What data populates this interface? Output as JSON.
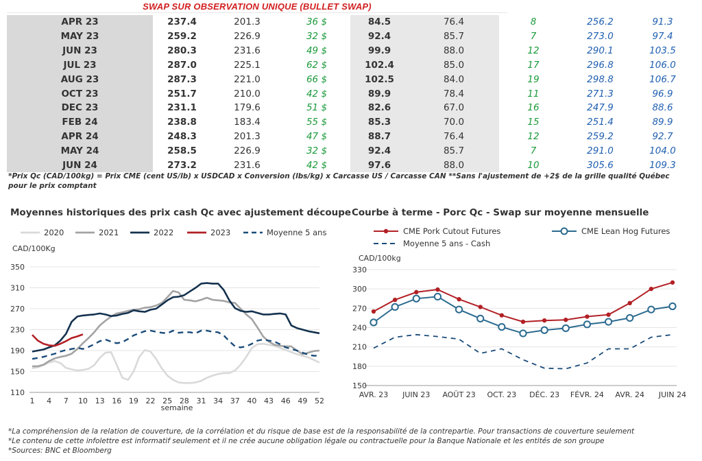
{
  "table": {
    "title": "SWAP SUR OBSERVATION UNIQUE (BULLET SWAP)",
    "rows": [
      {
        "month": "APR 23",
        "cme_cutout": "237.4",
        "usd_cutout": "201.3",
        "diff_cutout": "36 $",
        "cme_hog": "84.5",
        "usd_hog": "76.4",
        "diff_hog": "8",
        "qc_price": "256.2",
        "qc_lb": "91.3"
      },
      {
        "month": "MAY 23",
        "cme_cutout": "259.2",
        "usd_cutout": "226.9",
        "diff_cutout": "32 $",
        "cme_hog": "92.4",
        "usd_hog": "85.7",
        "diff_hog": "7",
        "qc_price": "273.0",
        "qc_lb": "97.4"
      },
      {
        "month": "JUN 23",
        "cme_cutout": "280.3",
        "usd_cutout": "231.6",
        "diff_cutout": "49 $",
        "cme_hog": "99.9",
        "usd_hog": "88.0",
        "diff_hog": "12",
        "qc_price": "290.1",
        "qc_lb": "103.5"
      },
      {
        "month": "JUL 23",
        "cme_cutout": "287.0",
        "usd_cutout": "225.1",
        "diff_cutout": "62 $",
        "cme_hog": "102.4",
        "usd_hog": "85.0",
        "diff_hog": "17",
        "qc_price": "296.8",
        "qc_lb": "106.0"
      },
      {
        "month": "AUG 23",
        "cme_cutout": "287.3",
        "usd_cutout": "221.0",
        "diff_cutout": "66 $",
        "cme_hog": "102.5",
        "usd_hog": "84.0",
        "diff_hog": "19",
        "qc_price": "298.8",
        "qc_lb": "106.7"
      },
      {
        "month": "OCT 23",
        "cme_cutout": "251.7",
        "usd_cutout": "210.0",
        "diff_cutout": "42 $",
        "cme_hog": "89.9",
        "usd_hog": "78.4",
        "diff_hog": "11",
        "qc_price": "271.3",
        "qc_lb": "96.9"
      },
      {
        "month": "DEC 23",
        "cme_cutout": "231.1",
        "usd_cutout": "179.6",
        "diff_cutout": "51 $",
        "cme_hog": "82.6",
        "usd_hog": "67.0",
        "diff_hog": "16",
        "qc_price": "247.9",
        "qc_lb": "88.6"
      },
      {
        "month": "FEB 24",
        "cme_cutout": "238.8",
        "usd_cutout": "183.4",
        "diff_cutout": "55 $",
        "cme_hog": "85.3",
        "usd_hog": "70.0",
        "diff_hog": "15",
        "qc_price": "251.4",
        "qc_lb": "89.9"
      },
      {
        "month": "APR 24",
        "cme_cutout": "248.3",
        "usd_cutout": "201.3",
        "diff_cutout": "47 $",
        "cme_hog": "88.7",
        "usd_hog": "76.4",
        "diff_hog": "12",
        "qc_price": "259.2",
        "qc_lb": "92.7"
      },
      {
        "month": "MAY 24",
        "cme_cutout": "258.5",
        "usd_cutout": "226.9",
        "diff_cutout": "32 $",
        "cme_hog": "92.4",
        "usd_hog": "85.7",
        "diff_hog": "7",
        "qc_price": "291.0",
        "qc_lb": "104.0"
      },
      {
        "month": "JUN 24",
        "cme_cutout": "273.2",
        "usd_cutout": "231.6",
        "diff_cutout": "42 $",
        "cme_hog": "97.6",
        "usd_hog": "88.0",
        "diff_hog": "10",
        "qc_price": "305.6",
        "qc_lb": "109.3"
      }
    ]
  },
  "footnote": "*Prix Qc (CAD/100kg) = Prix CME (cent US/lb) x USDCAD x Conversion (lbs/kg) x Carcasse US / Carcasse CAN **Sans l'ajustement de +2$ de la grille qualité Québec pour le prix comptant",
  "chart_data": [
    {
      "type": "line",
      "title": "Moyennes historiques des prix cash Qc avec ajustement découpe",
      "ylabel": "CAD/100Kg",
      "xlabel": "semaine",
      "ylim": [
        110,
        350
      ],
      "xlim": [
        1,
        52
      ],
      "yticks": [
        "110",
        "150",
        "190",
        "230",
        "270",
        "310",
        "350"
      ],
      "xticks": [
        "1",
        "4",
        "7",
        "10",
        "13",
        "16",
        "19",
        "22",
        "25",
        "28",
        "31",
        "34",
        "37",
        "40",
        "43",
        "46",
        "49",
        "52"
      ],
      "legend_position": "top",
      "series": [
        {
          "name": "2020",
          "color": "#d9d9d9",
          "style": "solid",
          "x": [
            1,
            2,
            3,
            4,
            5,
            6,
            7,
            8,
            9,
            10,
            11,
            12,
            13,
            14,
            15,
            16,
            17,
            18,
            19,
            20,
            21,
            22,
            23,
            24,
            25,
            26,
            27,
            28,
            29,
            30,
            31,
            32,
            33,
            34,
            35,
            36,
            37,
            38,
            39,
            40,
            41,
            42,
            43,
            44,
            45,
            46,
            47,
            48,
            49,
            50,
            51,
            52
          ],
          "y": [
            156,
            158,
            162,
            167,
            170,
            166,
            157,
            154,
            152,
            153,
            155,
            162,
            176,
            186,
            187,
            163,
            138,
            134,
            150,
            178,
            191,
            188,
            174,
            156,
            142,
            134,
            129,
            128,
            128,
            129,
            132,
            138,
            142,
            145,
            147,
            147,
            152,
            163,
            178,
            195,
            202,
            203,
            201,
            199,
            195,
            191,
            187,
            183,
            180,
            177,
            172,
            167
          ]
        },
        {
          "name": "2021",
          "color": "#a3a3a3",
          "style": "solid",
          "x": [
            1,
            2,
            3,
            4,
            5,
            6,
            7,
            8,
            9,
            10,
            11,
            12,
            13,
            14,
            15,
            16,
            17,
            18,
            19,
            20,
            21,
            22,
            23,
            24,
            25,
            26,
            27,
            28,
            29,
            30,
            31,
            32,
            33,
            34,
            35,
            36,
            37,
            38,
            39,
            40,
            41,
            42,
            43,
            44,
            45,
            46,
            47,
            48,
            49,
            50,
            51,
            52
          ],
          "y": [
            160,
            160,
            163,
            170,
            175,
            178,
            180,
            184,
            193,
            204,
            214,
            225,
            238,
            247,
            255,
            261,
            263,
            266,
            268,
            269,
            272,
            273,
            276,
            281,
            292,
            304,
            301,
            287,
            286,
            284,
            287,
            291,
            287,
            286,
            285,
            282,
            281,
            270,
            259,
            250,
            234,
            217,
            207,
            201,
            199,
            198,
            198,
            190,
            183,
            186,
            189,
            190
          ]
        },
        {
          "name": "2022",
          "color": "#14324f",
          "style": "solid",
          "x": [
            1,
            2,
            3,
            4,
            5,
            6,
            7,
            8,
            9,
            10,
            11,
            12,
            13,
            14,
            15,
            16,
            17,
            18,
            19,
            20,
            21,
            22,
            23,
            24,
            25,
            26,
            27,
            28,
            29,
            30,
            31,
            32,
            33,
            34,
            35,
            36,
            37,
            38,
            39,
            40,
            41,
            42,
            43,
            44,
            45,
            46,
            47,
            48,
            49,
            50,
            51,
            52
          ],
          "y": [
            188,
            190,
            192,
            196,
            200,
            209,
            222,
            245,
            255,
            257,
            258,
            259,
            261,
            259,
            256,
            257,
            260,
            262,
            267,
            265,
            264,
            268,
            270,
            278,
            286,
            292,
            293,
            296,
            303,
            310,
            318,
            319,
            318,
            318,
            306,
            286,
            271,
            266,
            264,
            265,
            262,
            259,
            259,
            260,
            261,
            259,
            238,
            233,
            230,
            227,
            225,
            223
          ]
        },
        {
          "name": "2023",
          "color": "#b22025",
          "style": "solid",
          "x": [
            1,
            2,
            3,
            4,
            5,
            6,
            7,
            8,
            9,
            10
          ],
          "y": [
            220,
            209,
            203,
            200,
            199,
            203,
            208,
            214,
            217,
            221
          ]
        },
        {
          "name": "Moyenne 5 ans",
          "color": "#1a4b7a",
          "style": "dashed",
          "x": [
            1,
            2,
            3,
            4,
            5,
            6,
            7,
            8,
            9,
            10,
            11,
            12,
            13,
            14,
            15,
            16,
            17,
            18,
            19,
            20,
            21,
            22,
            23,
            24,
            25,
            26,
            27,
            28,
            29,
            30,
            31,
            32,
            33,
            34,
            35,
            36,
            37,
            38,
            39,
            40,
            41,
            42,
            43,
            44,
            45,
            46,
            47,
            48,
            49,
            50,
            51,
            52
          ],
          "y": [
            174,
            176,
            178,
            181,
            184,
            188,
            191,
            193,
            195,
            193,
            197,
            202,
            208,
            211,
            207,
            204,
            206,
            212,
            219,
            223,
            227,
            228,
            226,
            224,
            223,
            228,
            224,
            225,
            225,
            223,
            228,
            228,
            226,
            225,
            219,
            208,
            198,
            196,
            198,
            203,
            209,
            211,
            209,
            207,
            202,
            196,
            193,
            190,
            186,
            182,
            180,
            180
          ]
        }
      ]
    },
    {
      "type": "line",
      "title": "Courbe à terme - Porc Qc - Swap sur moyenne mensuelle",
      "ylabel": "CAD/100kg",
      "ylim": [
        150,
        330
      ],
      "yticks": [
        "150",
        "180",
        "210",
        "240",
        "270",
        "300",
        "330"
      ],
      "categories": [
        "AVR. 23",
        "",
        "JUIN 23",
        "",
        "AOÛT 23",
        "",
        "OCT. 23",
        "",
        "DÉC. 23",
        "",
        "FÉVR. 24",
        "",
        "AVR. 24",
        "",
        "JUIN 24"
      ],
      "xtick_labels": [
        "AVR. 23",
        "JUIN 23",
        "AOÛT 23",
        "OCT. 23",
        "DÉC. 23",
        "FÉVR. 24",
        "AVR. 24",
        "JUIN 24"
      ],
      "legend_position": "top",
      "series": [
        {
          "name": "CME Pork Cutout Futures",
          "color": "#b22025",
          "style": "solid-dot",
          "values": [
            265,
            283,
            295,
            299,
            284,
            272,
            259,
            249,
            251,
            252,
            257,
            260,
            278,
            300,
            310
          ]
        },
        {
          "name": "CME Lean Hog Futures",
          "color": "#2a6a8f",
          "style": "solid-circle",
          "values": [
            248,
            272,
            285,
            288,
            268,
            254,
            241,
            231,
            236,
            239,
            245,
            249,
            255,
            268,
            273
          ]
        },
        {
          "name": "Moyenne 5 ans - Cash",
          "color": "#1a4b7a",
          "style": "dashed",
          "values": [
            208,
            225,
            229,
            226,
            222,
            200,
            207,
            190,
            177,
            176,
            185,
            207,
            207,
            225,
            229
          ]
        }
      ]
    }
  ],
  "notes": [
    "*La compréhension de la relation de couverture, de la corrélation et du risque de base est de la responsabilité de la contrepartie. Pour transactions de couverture seulement",
    "*Le contenu de cette infolettre est informatif seulement et il ne crée aucune obligation légale ou contractuelle pour la Banque Nationale et les entités de son groupe",
    "*Sources: BNC et Bloomberg"
  ]
}
